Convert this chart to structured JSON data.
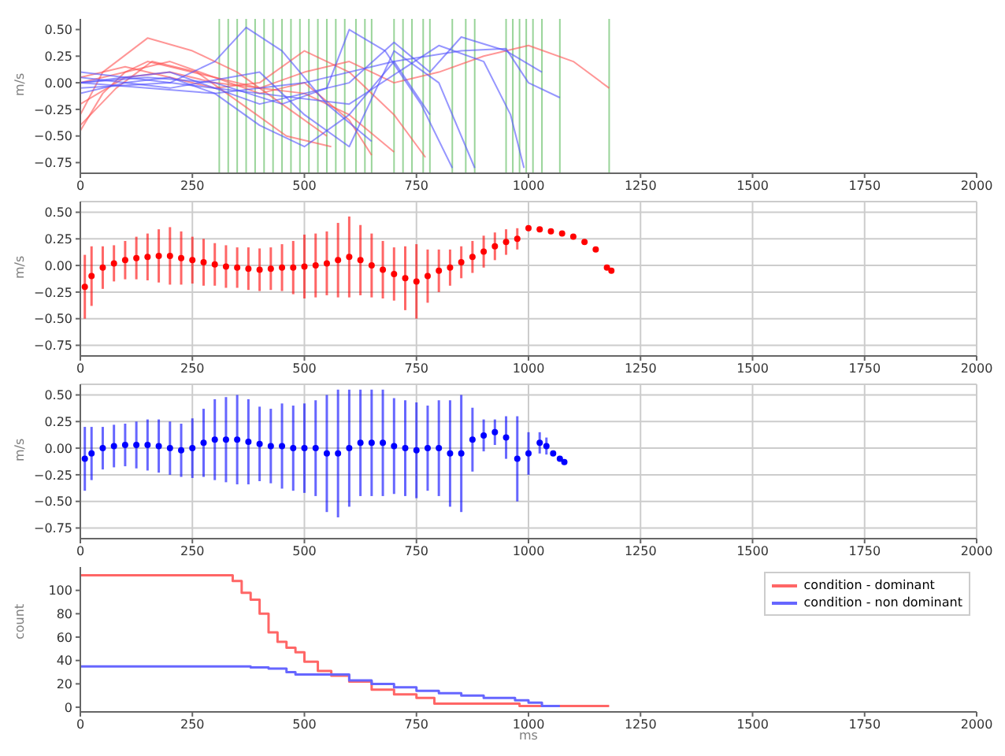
{
  "chart_data": [
    {
      "type": "line",
      "ylabel": "m/s",
      "xlim": [
        0,
        2000
      ],
      "xticks": [
        0,
        250,
        500,
        750,
        1000,
        1250,
        1500,
        1750,
        2000
      ],
      "ylim": [
        -0.85,
        0.6
      ],
      "yticks": [
        {
          "value": -0.75,
          "label": "−0.75"
        },
        {
          "value": -0.5,
          "label": "−0.50"
        },
        {
          "value": -0.25,
          "label": "−0.25"
        },
        {
          "value": 0,
          "label": "0.00"
        },
        {
          "value": 0.25,
          "label": "0.25"
        },
        {
          "value": 0.5,
          "label": "0.50"
        }
      ],
      "grid": false,
      "legend": false,
      "series": [
        {
          "color": "#ff5050",
          "x": [
            0,
            50,
            100,
            150,
            200,
            300,
            400,
            500,
            600,
            700
          ],
          "values": [
            -0.45,
            -0.1,
            0.1,
            0.2,
            0.15,
            0.05,
            -0.05,
            -0.1,
            -0.3,
            -0.65
          ]
        },
        {
          "color": "#ff5050",
          "x": [
            0,
            50,
            150,
            250,
            350,
            450,
            550
          ],
          "values": [
            -0.3,
            0.1,
            0.42,
            0.3,
            0.1,
            -0.2,
            -0.5
          ]
        },
        {
          "color": "#ff5050",
          "x": [
            0,
            100,
            200,
            300,
            400,
            500,
            600,
            650
          ],
          "values": [
            0,
            0.1,
            0.2,
            0.05,
            -0.1,
            0,
            -0.35,
            -0.68
          ]
        },
        {
          "color": "#ff5050",
          "x": [
            0,
            100,
            200,
            300,
            400,
            500,
            600,
            700,
            800,
            900,
            1000,
            1100,
            1180
          ],
          "values": [
            -0.2,
            0.05,
            0.1,
            0,
            -0.05,
            0.1,
            0.2,
            0,
            0.1,
            0.25,
            0.35,
            0.2,
            -0.05
          ]
        },
        {
          "color": "#ff5050",
          "x": [
            0,
            100,
            200,
            300,
            400,
            500,
            600,
            700,
            770
          ],
          "values": [
            0.05,
            0.15,
            0.05,
            -0.05,
            0,
            0.3,
            0.1,
            -0.3,
            -0.7
          ]
        },
        {
          "color": "#ff5050",
          "x": [
            0,
            80,
            160,
            260,
            360,
            460,
            560
          ],
          "values": [
            -0.4,
            -0.05,
            0.2,
            0.1,
            -0.2,
            -0.5,
            -0.6
          ]
        },
        {
          "color": "#5050ff",
          "x": [
            0,
            100,
            200,
            300,
            370,
            450,
            550,
            650
          ],
          "values": [
            0.1,
            0.05,
            0,
            0.2,
            0.52,
            0.3,
            -0.2,
            -0.55
          ]
        },
        {
          "color": "#5050ff",
          "x": [
            0,
            100,
            200,
            300,
            400,
            500,
            600,
            700,
            780
          ],
          "values": [
            -0.1,
            0,
            0.05,
            -0.1,
            -0.4,
            -0.6,
            -0.3,
            0.2,
            -0.3
          ]
        },
        {
          "color": "#5050ff",
          "x": [
            0,
            150,
            300,
            450,
            550,
            600,
            680,
            760,
            830
          ],
          "values": [
            0,
            0.05,
            0,
            -0.2,
            -0.05,
            0.5,
            0.3,
            -0.2,
            -0.8
          ]
        },
        {
          "color": "#5050ff",
          "x": [
            0,
            200,
            400,
            500,
            600,
            700,
            800,
            880
          ],
          "values": [
            0.05,
            -0.05,
            0.1,
            -0.3,
            -0.6,
            0.3,
            0,
            -0.8
          ]
        },
        {
          "color": "#5050ff",
          "x": [
            0,
            200,
            400,
            600,
            700,
            780,
            850,
            950,
            1030
          ],
          "values": [
            0,
            0.1,
            -0.2,
            0,
            0.38,
            0.1,
            0.43,
            0.3,
            0.1
          ]
        },
        {
          "color": "#5050ff",
          "x": [
            0,
            200,
            400,
            600,
            800,
            900,
            960,
            990
          ],
          "values": [
            -0.05,
            0,
            -0.1,
            -0.2,
            0.35,
            0.2,
            -0.3,
            -0.8
          ]
        },
        {
          "color": "#5050ff",
          "x": [
            0,
            300,
            500,
            700,
            850,
            950,
            1000,
            1070
          ],
          "values": [
            0,
            -0.1,
            0,
            0.2,
            0.3,
            0.32,
            0,
            -0.14
          ]
        }
      ],
      "ref_lines": [
        {
          "axis": "x",
          "value": 310,
          "color": "#7fc97f"
        },
        {
          "axis": "x",
          "value": 330,
          "color": "#7fc97f"
        },
        {
          "axis": "x",
          "value": 350,
          "color": "#7fc97f"
        },
        {
          "axis": "x",
          "value": 370,
          "color": "#7fc97f"
        },
        {
          "axis": "x",
          "value": 390,
          "color": "#7fc97f"
        },
        {
          "axis": "x",
          "value": 410,
          "color": "#7fc97f"
        },
        {
          "axis": "x",
          "value": 430,
          "color": "#7fc97f"
        },
        {
          "axis": "x",
          "value": 450,
          "color": "#7fc97f"
        },
        {
          "axis": "x",
          "value": 470,
          "color": "#7fc97f"
        },
        {
          "axis": "x",
          "value": 490,
          "color": "#7fc97f"
        },
        {
          "axis": "x",
          "value": 510,
          "color": "#7fc97f"
        },
        {
          "axis": "x",
          "value": 530,
          "color": "#7fc97f"
        },
        {
          "axis": "x",
          "value": 550,
          "color": "#7fc97f"
        },
        {
          "axis": "x",
          "value": 570,
          "color": "#7fc97f"
        },
        {
          "axis": "x",
          "value": 590,
          "color": "#7fc97f"
        },
        {
          "axis": "x",
          "value": 615,
          "color": "#7fc97f"
        },
        {
          "axis": "x",
          "value": 635,
          "color": "#7fc97f"
        },
        {
          "axis": "x",
          "value": 650,
          "color": "#7fc97f"
        },
        {
          "axis": "x",
          "value": 700,
          "color": "#7fc97f"
        },
        {
          "axis": "x",
          "value": 720,
          "color": "#7fc97f"
        },
        {
          "axis": "x",
          "value": 740,
          "color": "#7fc97f"
        },
        {
          "axis": "x",
          "value": 765,
          "color": "#7fc97f"
        },
        {
          "axis": "x",
          "value": 780,
          "color": "#7fc97f"
        },
        {
          "axis": "x",
          "value": 830,
          "color": "#7fc97f"
        },
        {
          "axis": "x",
          "value": 860,
          "color": "#7fc97f"
        },
        {
          "axis": "x",
          "value": 880,
          "color": "#7fc97f"
        },
        {
          "axis": "x",
          "value": 950,
          "color": "#7fc97f"
        },
        {
          "axis": "x",
          "value": 965,
          "color": "#7fc97f"
        },
        {
          "axis": "x",
          "value": 980,
          "color": "#7fc97f"
        },
        {
          "axis": "x",
          "value": 995,
          "color": "#7fc97f"
        },
        {
          "axis": "x",
          "value": 1010,
          "color": "#7fc97f"
        },
        {
          "axis": "x",
          "value": 1030,
          "color": "#7fc97f"
        },
        {
          "axis": "x",
          "value": 1070,
          "color": "#7fc97f"
        },
        {
          "axis": "x",
          "value": 1180,
          "color": "#7fc97f"
        }
      ]
    },
    {
      "type": "scatter",
      "ylabel": "m/s",
      "xlim": [
        0,
        2000
      ],
      "xticks": [
        0,
        250,
        500,
        750,
        1000,
        1250,
        1500,
        1750,
        2000
      ],
      "ylim": [
        -0.85,
        0.6
      ],
      "yticks": [
        {
          "value": -0.75,
          "label": "−0.75"
        },
        {
          "value": -0.5,
          "label": "−0.50"
        },
        {
          "value": -0.25,
          "label": "−0.25"
        },
        {
          "value": 0,
          "label": "0.00"
        },
        {
          "value": 0.25,
          "label": "0.25"
        },
        {
          "value": 0.5,
          "label": "0.50"
        }
      ],
      "grid": true,
      "legend": false,
      "marker": "circle",
      "series": [
        {
          "color": "#ff0000",
          "x": [
            10,
            25,
            50,
            75,
            100,
            125,
            150,
            175,
            200,
            225,
            250,
            275,
            300,
            325,
            350,
            375,
            400,
            425,
            450,
            475,
            500,
            525,
            550,
            575,
            600,
            625,
            650,
            675,
            700,
            725,
            750,
            775,
            800,
            825,
            850,
            875,
            900,
            925,
            950,
            975,
            1000,
            1025,
            1050,
            1075,
            1100,
            1125,
            1150,
            1175,
            1185
          ],
          "values": [
            -0.2,
            -0.1,
            -0.02,
            0.02,
            0.05,
            0.07,
            0.08,
            0.09,
            0.09,
            0.07,
            0.05,
            0.03,
            0.01,
            -0.01,
            -0.02,
            -0.03,
            -0.04,
            -0.03,
            -0.02,
            -0.02,
            -0.01,
            0,
            0.02,
            0.05,
            0.08,
            0.05,
            0,
            -0.04,
            -0.08,
            -0.12,
            -0.15,
            -0.1,
            -0.05,
            -0.02,
            0.03,
            0.08,
            0.13,
            0.18,
            0.22,
            0.25,
            0.35,
            0.34,
            0.32,
            0.3,
            0.27,
            0.22,
            0.15,
            -0.02,
            -0.05
          ],
          "errors": [
            0.3,
            0.28,
            0.2,
            0.17,
            0.18,
            0.2,
            0.22,
            0.25,
            0.27,
            0.25,
            0.22,
            0.22,
            0.2,
            0.2,
            0.19,
            0.2,
            0.2,
            0.2,
            0.22,
            0.25,
            0.3,
            0.3,
            0.3,
            0.35,
            0.38,
            0.33,
            0.3,
            0.27,
            0.25,
            0.3,
            0.35,
            0.25,
            0.2,
            0.17,
            0.15,
            0.15,
            0.15,
            0.13,
            0.12,
            0.1,
            null,
            null,
            null,
            null,
            null,
            null,
            null,
            null,
            null
          ]
        }
      ]
    },
    {
      "type": "scatter",
      "ylabel": "m/s",
      "xlim": [
        0,
        2000
      ],
      "xticks": [
        0,
        250,
        500,
        750,
        1000,
        1250,
        1500,
        1750,
        2000
      ],
      "ylim": [
        -0.85,
        0.6
      ],
      "yticks": [
        {
          "value": -0.75,
          "label": "−0.75"
        },
        {
          "value": -0.5,
          "label": "−0.50"
        },
        {
          "value": -0.25,
          "label": "−0.25"
        },
        {
          "value": 0,
          "label": "0.00"
        },
        {
          "value": 0.25,
          "label": "0.25"
        },
        {
          "value": 0.5,
          "label": "0.50"
        }
      ],
      "grid": true,
      "legend": false,
      "marker": "circle",
      "series": [
        {
          "color": "#0000ff",
          "x": [
            10,
            25,
            50,
            75,
            100,
            125,
            150,
            175,
            200,
            225,
            250,
            275,
            300,
            325,
            350,
            375,
            400,
            425,
            450,
            475,
            500,
            525,
            550,
            575,
            600,
            625,
            650,
            675,
            700,
            725,
            750,
            775,
            800,
            825,
            850,
            875,
            900,
            925,
            950,
            975,
            1000,
            1025,
            1040,
            1055,
            1070,
            1080
          ],
          "values": [
            -0.1,
            -0.05,
            0,
            0.02,
            0.03,
            0.03,
            0.03,
            0.02,
            0,
            -0.02,
            0,
            0.05,
            0.08,
            0.08,
            0.08,
            0.06,
            0.04,
            0.02,
            0.02,
            0,
            0,
            0,
            -0.05,
            -0.05,
            0,
            0.05,
            0.05,
            0.05,
            0.02,
            0,
            -0.02,
            0,
            0,
            -0.05,
            -0.05,
            0.08,
            0.12,
            0.15,
            0.1,
            -0.1,
            -0.05,
            0.05,
            0.02,
            -0.05,
            -0.1,
            -0.13
          ],
          "errors": [
            0.3,
            0.25,
            0.2,
            0.2,
            0.2,
            0.22,
            0.24,
            0.25,
            0.25,
            0.25,
            0.28,
            0.32,
            0.38,
            0.4,
            0.42,
            0.4,
            0.35,
            0.35,
            0.4,
            0.4,
            0.42,
            0.45,
            0.55,
            0.6,
            0.55,
            0.5,
            0.5,
            0.5,
            0.45,
            0.45,
            0.45,
            0.4,
            0.45,
            0.5,
            0.55,
            0.3,
            0.15,
            0.12,
            0.2,
            0.4,
            0.2,
            0.1,
            0.08,
            null,
            null,
            null
          ]
        }
      ]
    },
    {
      "type": "step",
      "xlabel": "ms",
      "ylabel": "count",
      "xlim": [
        0,
        2000
      ],
      "xticks": [
        0,
        250,
        500,
        750,
        1000,
        1250,
        1500,
        1750,
        2000
      ],
      "ylim": [
        -4,
        120
      ],
      "yticks": [
        0,
        20,
        40,
        60,
        80,
        100
      ],
      "grid": false,
      "legend": "top right",
      "series": [
        {
          "name": "condition - dominant",
          "color": "#ff6666",
          "x": [
            0,
            320,
            340,
            360,
            380,
            400,
            420,
            440,
            460,
            480,
            500,
            530,
            560,
            600,
            650,
            700,
            750,
            790,
            950,
            980,
            1180
          ],
          "values": [
            113,
            113,
            108,
            98,
            92,
            80,
            64,
            56,
            51,
            47,
            39,
            31,
            27,
            22,
            15,
            11,
            8,
            3,
            3,
            1,
            1
          ]
        },
        {
          "name": "condition - non dominant",
          "color": "#6666ff",
          "x": [
            0,
            360,
            380,
            420,
            460,
            480,
            540,
            600,
            650,
            700,
            750,
            800,
            850,
            900,
            970,
            1000,
            1030,
            1070
          ],
          "values": [
            35,
            35,
            34,
            33,
            30,
            28,
            28,
            23,
            20,
            17,
            14,
            12,
            10,
            8,
            6,
            4,
            1,
            1
          ]
        }
      ]
    }
  ]
}
